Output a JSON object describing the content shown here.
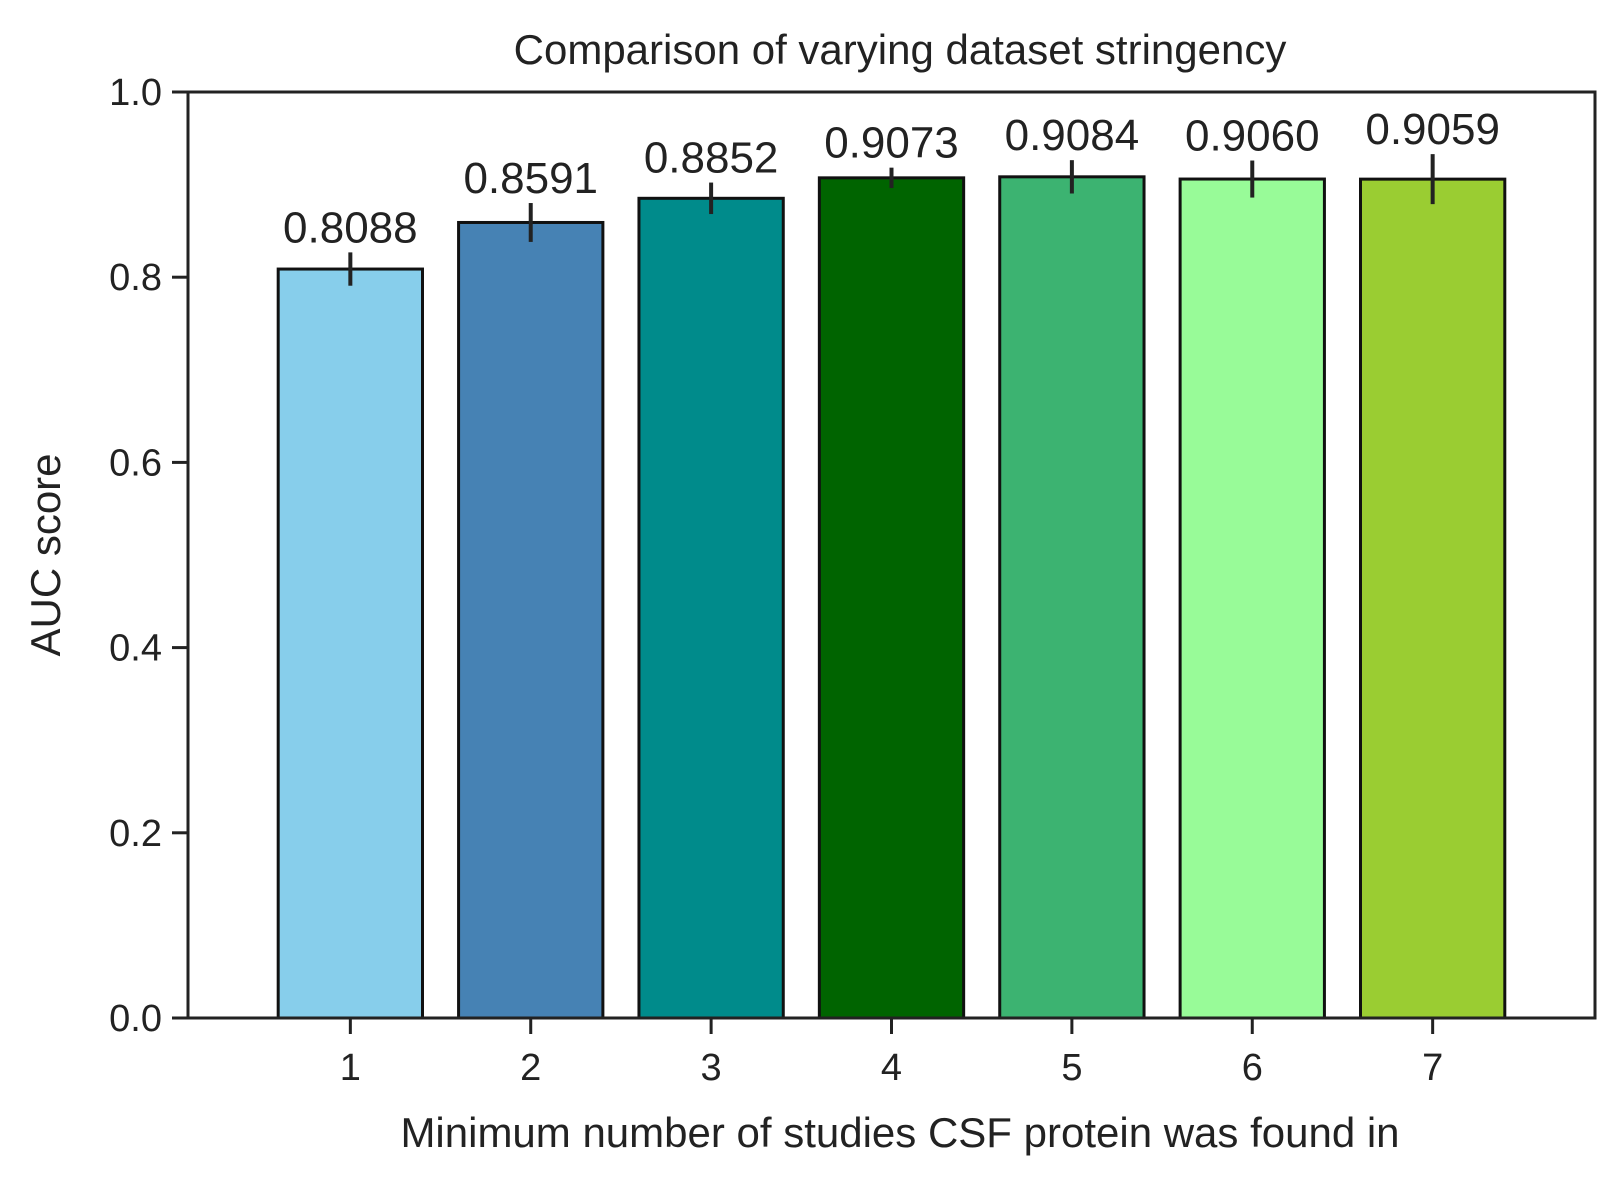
{
  "chart_data": {
    "type": "bar",
    "title": "Comparison of varying dataset stringency",
    "xlabel": "Minimum number of studies CSF protein was found in",
    "ylabel": "AUC score",
    "ylim": [
      0,
      1.0
    ],
    "yticks": [
      "0.0",
      "0.2",
      "0.4",
      "0.6",
      "0.8",
      "1.0"
    ],
    "categories": [
      "1",
      "2",
      "3",
      "4",
      "5",
      "6",
      "7"
    ],
    "values": [
      0.8088,
      0.8591,
      0.8852,
      0.9073,
      0.9084,
      0.906,
      0.9059
    ],
    "value_labels": [
      "0.8088",
      "0.8591",
      "0.8852",
      "0.9073",
      "0.9084",
      "0.9060",
      "0.9059"
    ],
    "errors": [
      0.018,
      0.021,
      0.017,
      0.011,
      0.018,
      0.02,
      0.027
    ],
    "colors": [
      "#87CEEB",
      "#4682B4",
      "#008B8B",
      "#006400",
      "#3CB371",
      "#98FB98",
      "#9ACD32"
    ],
    "grid": false,
    "legend": "none"
  }
}
